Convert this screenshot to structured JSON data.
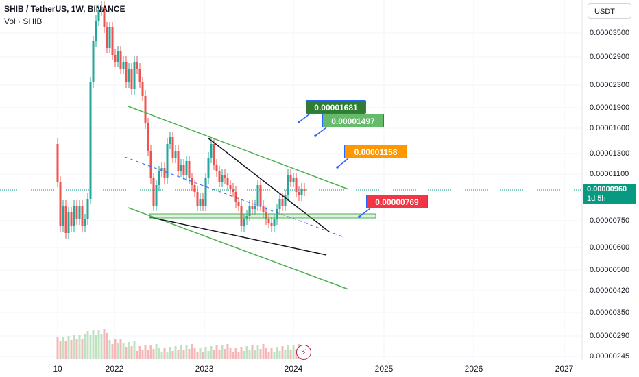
{
  "header": {
    "symbol_line": "SHIB / TetherUS, 1W, BINANCE",
    "volume_line": "Vol · SHIB"
  },
  "currency_button": "USDT",
  "price_axis": {
    "labels": [
      "0.00003500",
      "0.00002900",
      "0.00002300",
      "0.00001900",
      "0.00001600",
      "0.00001300",
      "0.00001100",
      "0.00000750",
      "0.00000600",
      "0.00000500",
      "0.00000420",
      "0.00000350",
      "0.00000290",
      "0.00000245"
    ]
  },
  "time_axis": {
    "labels": [
      "10",
      "2022",
      "2023",
      "2024",
      "2025",
      "2026",
      "2027"
    ]
  },
  "current_price": {
    "value": "0.00000960",
    "countdown": "1d 5h"
  },
  "callouts": [
    {
      "text": "0.00001681",
      "color": "#2e7d32"
    },
    {
      "text": "0.00001497",
      "color": "#66bb6a"
    },
    {
      "text": "0.00001158",
      "color": "#ff9800"
    },
    {
      "text": "0.00000769",
      "color": "#f23645"
    }
  ],
  "icons": {
    "flash": "⚡"
  },
  "colors": {
    "up": "#26a69a",
    "down": "#ef5350",
    "channel": "#4caf50",
    "trend": "#131722",
    "dash": "#2962ff"
  }
}
